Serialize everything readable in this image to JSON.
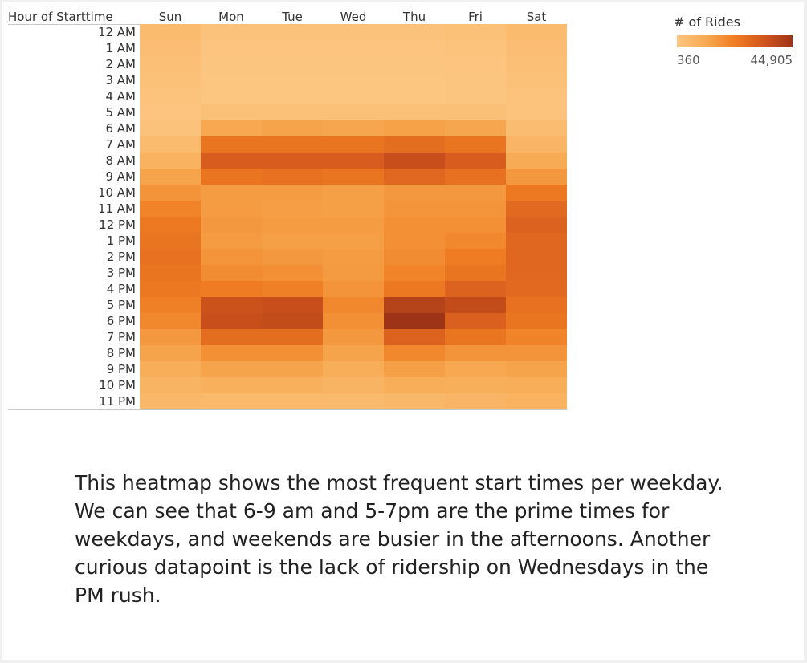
{
  "chart_data": {
    "type": "heatmap",
    "row_header": "Hour of Starttime",
    "columns": [
      "Sun",
      "Mon",
      "Tue",
      "Wed",
      "Thu",
      "Fri",
      "Sat"
    ],
    "rows": [
      "12 AM",
      "1 AM",
      "2 AM",
      "3 AM",
      "4 AM",
      "5 AM",
      "6 AM",
      "7 AM",
      "8 AM",
      "9 AM",
      "10 AM",
      "11 AM",
      "12 PM",
      "1 PM",
      "2 PM",
      "3 PM",
      "4 PM",
      "5 PM",
      "6 PM",
      "7 PM",
      "8 PM",
      "9 PM",
      "10 PM",
      "11 PM"
    ],
    "values": [
      [
        4500,
        1500,
        1500,
        1500,
        1500,
        2000,
        4500
      ],
      [
        3500,
        800,
        800,
        800,
        800,
        1000,
        3500
      ],
      [
        2800,
        500,
        500,
        500,
        500,
        700,
        2800
      ],
      [
        2000,
        400,
        400,
        400,
        400,
        500,
        2000
      ],
      [
        1200,
        400,
        400,
        400,
        400,
        500,
        1200
      ],
      [
        900,
        2500,
        2500,
        2500,
        2500,
        2500,
        1200
      ],
      [
        1500,
        12000,
        13000,
        12500,
        13500,
        12500,
        4000
      ],
      [
        4500,
        25000,
        25000,
        25000,
        27000,
        25000,
        7000
      ],
      [
        8000,
        32000,
        32000,
        32000,
        36000,
        32000,
        11000
      ],
      [
        13000,
        25000,
        26000,
        25000,
        29000,
        26000,
        16000
      ],
      [
        17000,
        15000,
        15000,
        14000,
        16000,
        16000,
        24000
      ],
      [
        21000,
        15000,
        14500,
        14000,
        17000,
        17000,
        28000
      ],
      [
        24000,
        16000,
        15000,
        15000,
        18000,
        18000,
        30000
      ],
      [
        25000,
        15000,
        14000,
        14000,
        18000,
        20000,
        29000
      ],
      [
        26000,
        17000,
        16000,
        15000,
        19000,
        23000,
        29000
      ],
      [
        25000,
        19000,
        18000,
        15500,
        21000,
        25000,
        29000
      ],
      [
        24000,
        23000,
        22000,
        17000,
        24000,
        30000,
        28000
      ],
      [
        22000,
        35000,
        36000,
        20000,
        40000,
        37000,
        26000
      ],
      [
        20000,
        36000,
        37000,
        18000,
        44905,
        31000,
        25000
      ],
      [
        16000,
        27000,
        27000,
        16000,
        30000,
        25000,
        21000
      ],
      [
        13000,
        18000,
        18000,
        13000,
        20000,
        17000,
        17000
      ],
      [
        10000,
        13000,
        13000,
        10000,
        14000,
        12000,
        13000
      ],
      [
        7500,
        9000,
        9000,
        7500,
        10000,
        9500,
        10000
      ],
      [
        6000,
        5500,
        5500,
        5000,
        6000,
        7000,
        8000
      ]
    ],
    "color_scale": {
      "title": "# of Rides",
      "min_label": "360",
      "max_label": "44,905",
      "min": 360,
      "max": 44905,
      "stops": [
        "#fcc580",
        "#f7aa52",
        "#f07d22",
        "#d2561d",
        "#9e3417"
      ]
    }
  },
  "caption": "This heatmap shows the most frequent start times per weekday. We can see that 6-9 am and 5-7pm are the prime times for weekdays, and weekends are busier in the afternoons. Another curious datapoint is the lack of ridership on Wednesdays in the PM rush."
}
